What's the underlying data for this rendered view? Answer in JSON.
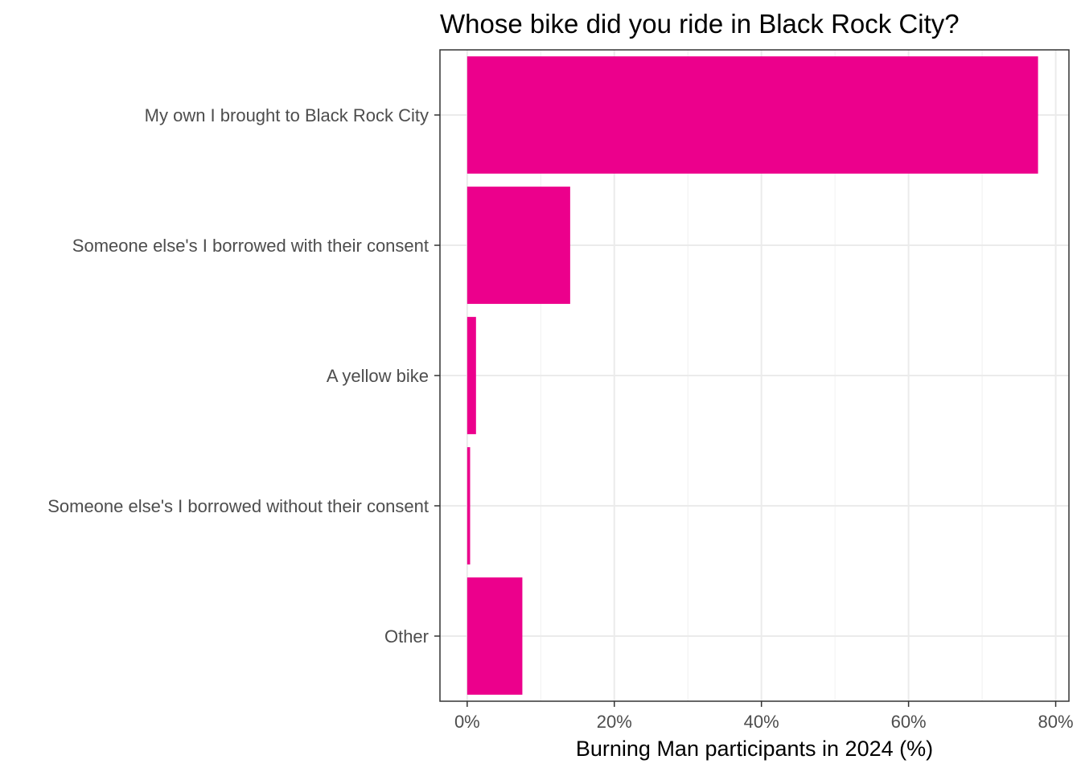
{
  "chart_data": {
    "type": "bar",
    "orientation": "horizontal",
    "title": "Whose bike did you ride in Black Rock City?",
    "xlabel": "Burning Man participants in 2024 (%)",
    "ylabel": "",
    "categories": [
      "My own I brought to Black Rock City",
      "Someone else's I borrowed with their consent",
      "A yellow bike",
      "Someone else's I borrowed without their consent",
      "Other"
    ],
    "values": [
      77.6,
      14.0,
      1.2,
      0.4,
      7.5
    ],
    "xlim": [
      -3.7,
      81.8
    ],
    "x_ticks": [
      0,
      20,
      40,
      60,
      80
    ],
    "x_tick_labels": [
      "0%",
      "20%",
      "40%",
      "60%",
      "80%"
    ],
    "bar_color": "#EC008C",
    "grid": true,
    "legend": "none"
  }
}
